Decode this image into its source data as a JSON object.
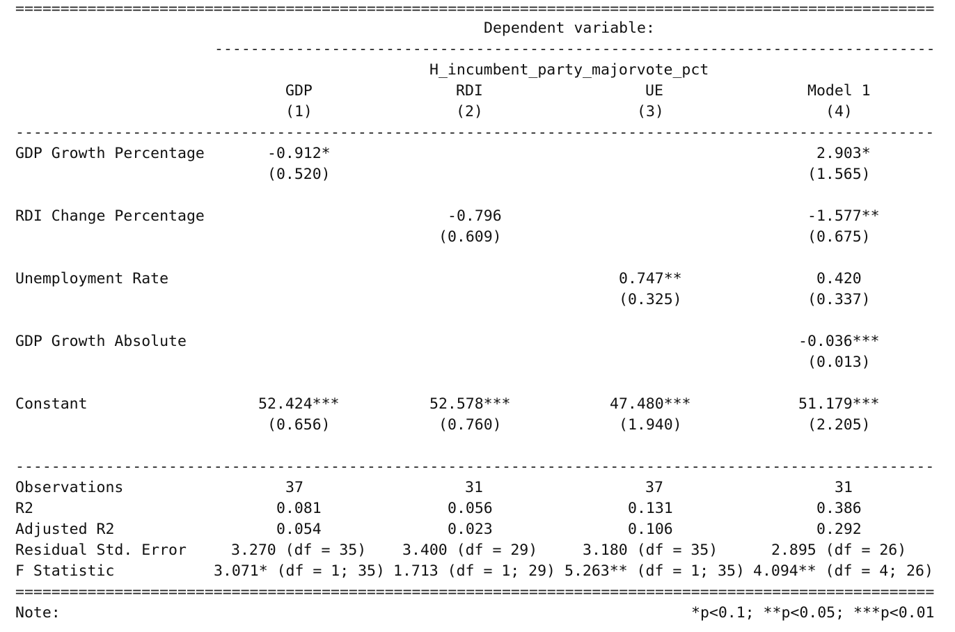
{
  "rules": {
    "double": "================================================================================================================",
    "single": "----------------------------------------------------------------------------------------------------------------"
  },
  "header": {
    "dependent_variable_label": "Dependent variable:",
    "dependent_variable_name": "H_incumbent_party_majorvote_pct",
    "model_names": [
      "GDP",
      "RDI",
      "UE",
      "Model 1"
    ],
    "model_numbers": [
      "(1)",
      "(2)",
      "(3)",
      "(4)"
    ]
  },
  "coefficients": [
    {
      "label": "GDP Growth Percentage",
      "estimates": [
        "-0.912*",
        "",
        "",
        "2.903*"
      ],
      "std_errors": [
        "(0.520)",
        "",
        "",
        "(1.565)"
      ]
    },
    {
      "label": "RDI Change Percentage",
      "estimates": [
        "",
        "-0.796",
        "",
        "-1.577**"
      ],
      "std_errors": [
        "",
        "(0.609)",
        "",
        "(0.675)"
      ]
    },
    {
      "label": "Unemployment Rate",
      "estimates": [
        "",
        "",
        "0.747**",
        "0.420"
      ],
      "std_errors": [
        "",
        "",
        "(0.325)",
        "(0.337)"
      ]
    },
    {
      "label": "GDP Growth Absolute",
      "estimates": [
        "",
        "",
        "",
        "-0.036***"
      ],
      "std_errors": [
        "",
        "",
        "",
        "(0.013)"
      ]
    },
    {
      "label": "Constant",
      "estimates": [
        "52.424***",
        "52.578***",
        "47.480***",
        "51.179***"
      ],
      "std_errors": [
        "(0.656)",
        "(0.760)",
        "(1.940)",
        "(2.205)"
      ]
    }
  ],
  "statistics": [
    {
      "label": "Observations",
      "values": [
        "37",
        "31",
        "37",
        "31"
      ]
    },
    {
      "label": "R2",
      "values": [
        "0.081",
        "0.056",
        "0.131",
        "0.386"
      ]
    },
    {
      "label": "Adjusted R2",
      "values": [
        "0.054",
        "0.023",
        "0.106",
        "0.292"
      ]
    },
    {
      "label": "Residual Std. Error",
      "values": [
        "3.270 (df = 35)",
        "3.400 (df = 29)",
        "3.180 (df = 35)",
        "2.895 (df = 26)"
      ]
    },
    {
      "label": "F Statistic",
      "values": [
        "3.071* (df = 1; 35)",
        "1.713 (df = 1; 29)",
        "5.263** (df = 1; 35)",
        "4.094** (df = 4; 26)"
      ]
    }
  ],
  "note": {
    "label": "Note:",
    "significance": "*p<0.1; **p<0.05; ***p<0.01"
  }
}
